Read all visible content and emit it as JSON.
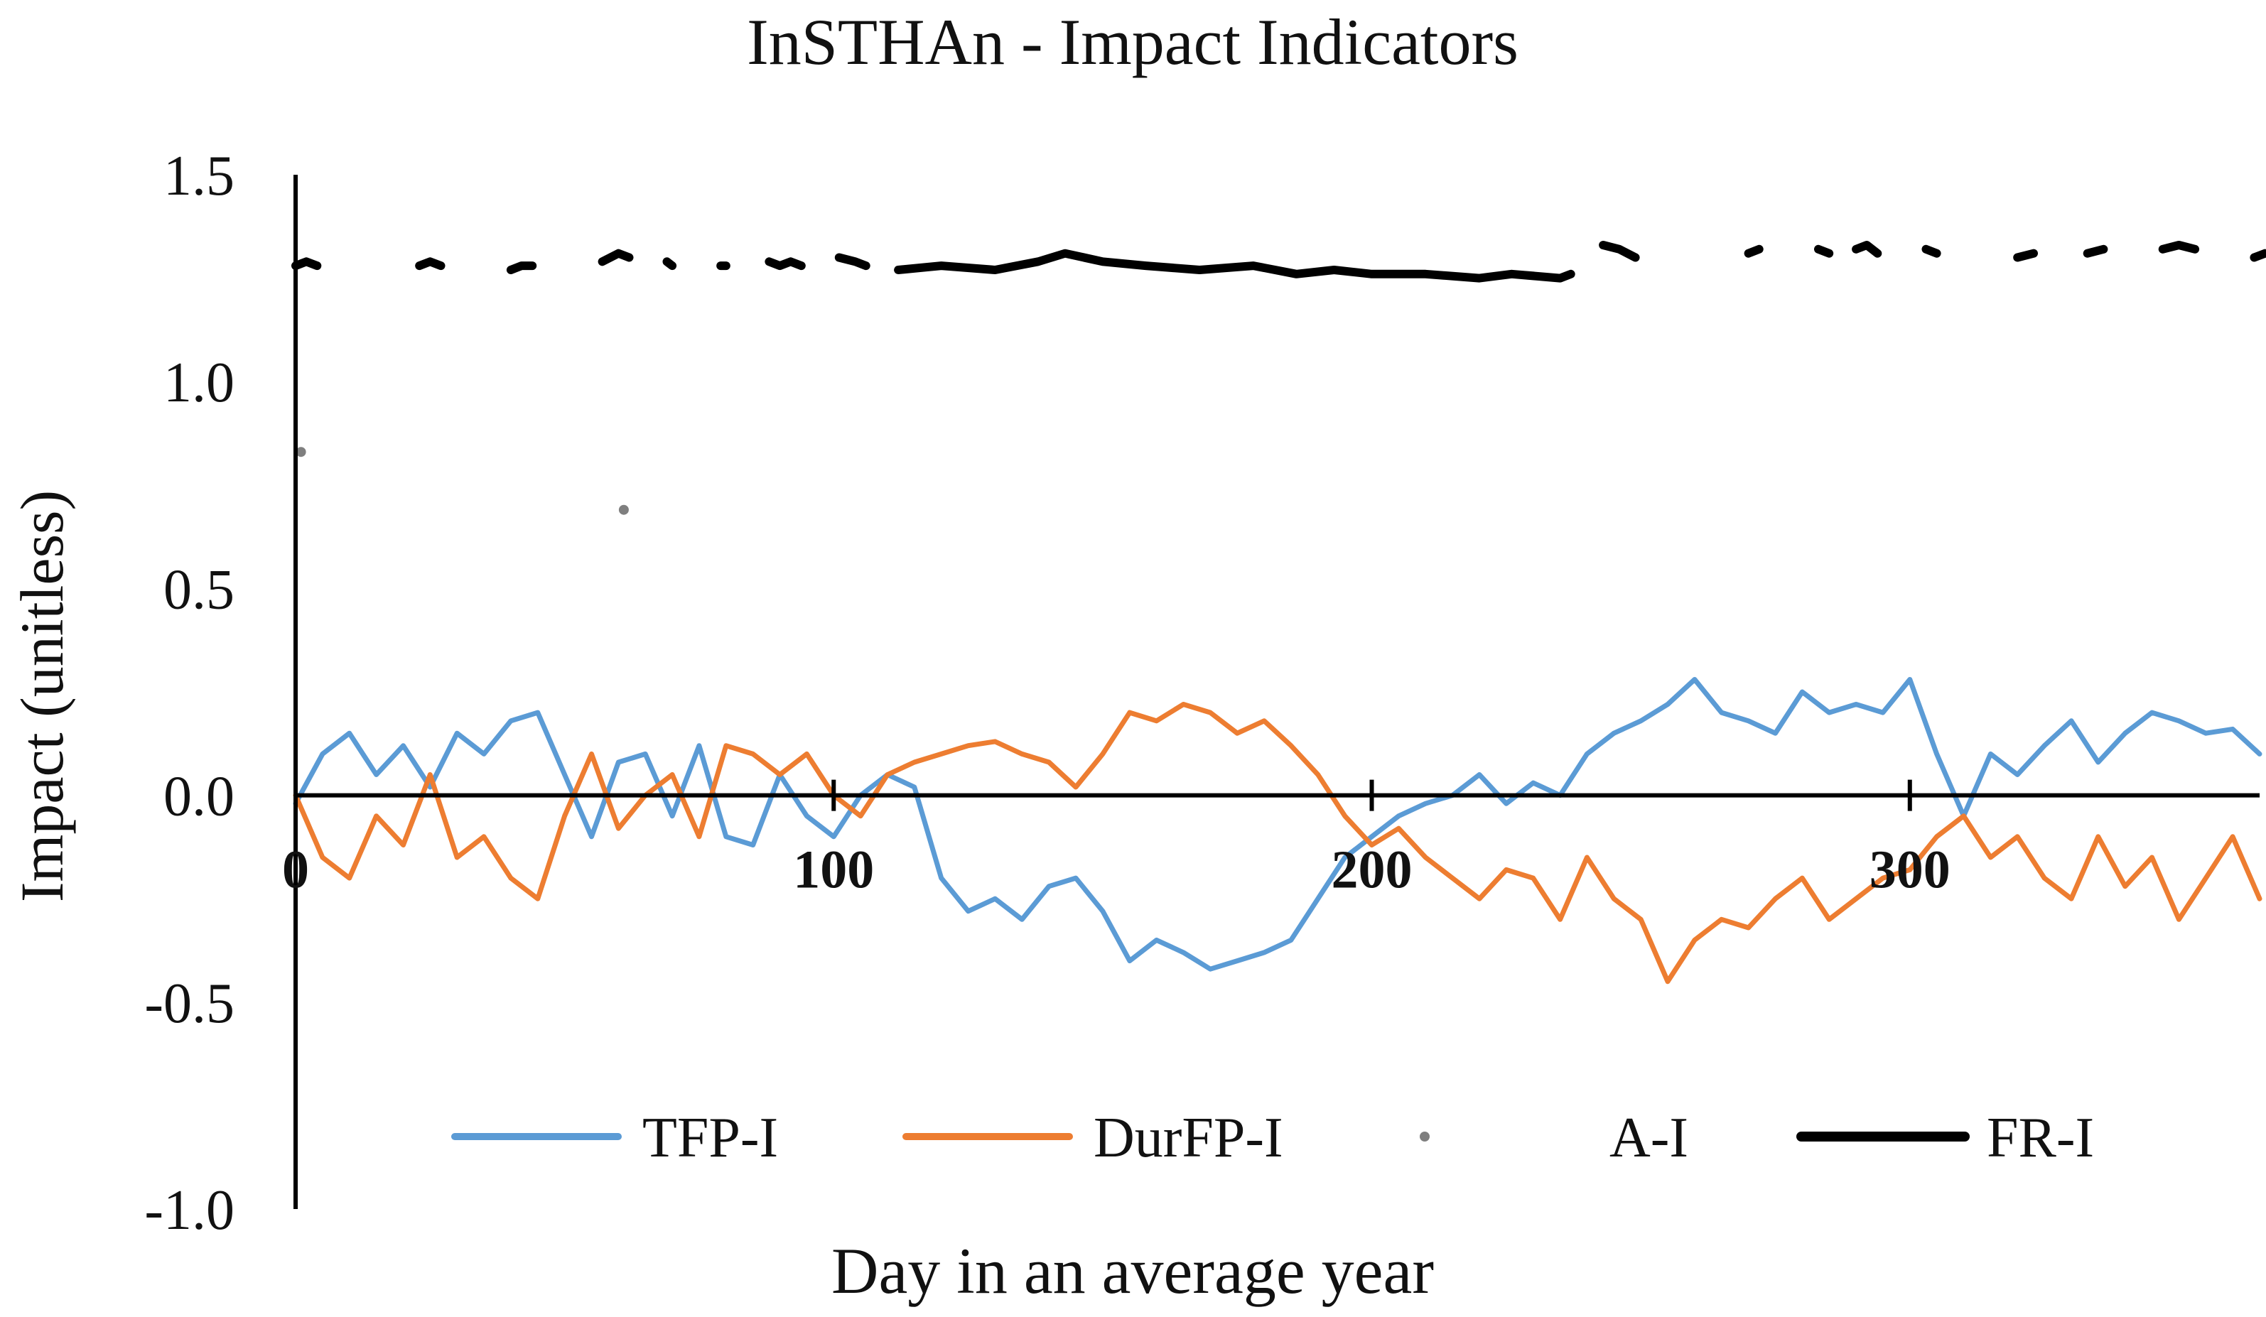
{
  "chart_data": {
    "type": "line",
    "title": "InSTHAn - Impact Indicators",
    "xlabel": "Day in an average year",
    "ylabel": "Impact (unitless)",
    "xlim": [
      0,
      365
    ],
    "ylim": [
      -1.0,
      1.5
    ],
    "x_ticks": [
      {
        "value": 0,
        "label": "0"
      },
      {
        "value": 100,
        "label": "100"
      },
      {
        "value": 200,
        "label": "200"
      },
      {
        "value": 300,
        "label": "300"
      }
    ],
    "y_ticks": [
      {
        "value": 1.5,
        "label": "1.5"
      },
      {
        "value": 1.0,
        "label": "1.0"
      },
      {
        "value": 0.5,
        "label": "0.5"
      },
      {
        "value": 0.0,
        "label": "0.0"
      },
      {
        "value": -0.5,
        "label": "-0.5"
      },
      {
        "value": -1.0,
        "label": "-1.0"
      }
    ],
    "legend_position": "bottom",
    "series": [
      {
        "name": "TFP-I",
        "style": "line",
        "color": "#5b9bd5",
        "x": [
          0,
          5,
          10,
          15,
          20,
          25,
          30,
          35,
          40,
          45,
          50,
          55,
          60,
          65,
          70,
          75,
          80,
          85,
          90,
          95,
          100,
          105,
          110,
          115,
          120,
          125,
          130,
          135,
          140,
          145,
          150,
          155,
          160,
          165,
          170,
          175,
          180,
          185,
          190,
          195,
          200,
          205,
          210,
          215,
          220,
          225,
          230,
          235,
          240,
          245,
          250,
          255,
          260,
          265,
          270,
          275,
          280,
          285,
          290,
          295,
          300,
          305,
          310,
          315,
          320,
          325,
          330,
          335,
          340,
          345,
          350,
          355,
          360,
          365
        ],
        "values": [
          -0.02,
          0.1,
          0.15,
          0.05,
          0.12,
          0.02,
          0.15,
          0.1,
          0.18,
          0.2,
          0.05,
          -0.1,
          0.08,
          0.1,
          -0.05,
          0.12,
          -0.1,
          -0.12,
          0.05,
          -0.05,
          -0.1,
          0.0,
          0.05,
          0.02,
          -0.2,
          -0.28,
          -0.25,
          -0.3,
          -0.22,
          -0.2,
          -0.28,
          -0.4,
          -0.35,
          -0.38,
          -0.42,
          -0.4,
          -0.38,
          -0.35,
          -0.25,
          -0.15,
          -0.1,
          -0.05,
          -0.02,
          0.0,
          0.05,
          -0.02,
          0.03,
          0.0,
          0.1,
          0.15,
          0.18,
          0.22,
          0.28,
          0.2,
          0.18,
          0.15,
          0.25,
          0.2,
          0.22,
          0.2,
          0.28,
          0.1,
          -0.05,
          0.1,
          0.05,
          0.12,
          0.18,
          0.08,
          0.15,
          0.2,
          0.18,
          0.15,
          0.16,
          0.1
        ]
      },
      {
        "name": "DurFP-I",
        "style": "line",
        "color": "#ed7d31",
        "x": [
          0,
          5,
          10,
          15,
          20,
          25,
          30,
          35,
          40,
          45,
          50,
          55,
          60,
          65,
          70,
          75,
          80,
          85,
          90,
          95,
          100,
          105,
          110,
          115,
          120,
          125,
          130,
          135,
          140,
          145,
          150,
          155,
          160,
          165,
          170,
          175,
          180,
          185,
          190,
          195,
          200,
          205,
          210,
          215,
          220,
          225,
          230,
          235,
          240,
          245,
          250,
          255,
          260,
          265,
          270,
          275,
          280,
          285,
          290,
          295,
          300,
          305,
          310,
          315,
          320,
          325,
          330,
          335,
          340,
          345,
          350,
          355,
          360,
          365
        ],
        "values": [
          0.0,
          -0.15,
          -0.2,
          -0.05,
          -0.12,
          0.05,
          -0.15,
          -0.1,
          -0.2,
          -0.25,
          -0.05,
          0.1,
          -0.08,
          0.0,
          0.05,
          -0.1,
          0.12,
          0.1,
          0.05,
          0.1,
          0.0,
          -0.05,
          0.05,
          0.08,
          0.1,
          0.12,
          0.13,
          0.1,
          0.08,
          0.02,
          0.1,
          0.2,
          0.18,
          0.22,
          0.2,
          0.15,
          0.18,
          0.12,
          0.05,
          -0.05,
          -0.12,
          -0.08,
          -0.15,
          -0.2,
          -0.25,
          -0.18,
          -0.2,
          -0.3,
          -0.15,
          -0.25,
          -0.3,
          -0.45,
          -0.35,
          -0.3,
          -0.32,
          -0.25,
          -0.2,
          -0.3,
          -0.25,
          -0.2,
          -0.18,
          -0.1,
          -0.05,
          -0.15,
          -0.1,
          -0.2,
          -0.25,
          -0.1,
          -0.22,
          -0.15,
          -0.3,
          -0.2,
          -0.1,
          -0.25
        ]
      },
      {
        "name": "A-I",
        "style": "point",
        "color": "#7f7f7f",
        "x": [
          1,
          61
        ],
        "values": [
          0.83,
          0.69
        ]
      },
      {
        "name": "FR-I",
        "style": "broken-line",
        "color": "#000000",
        "segments": [
          {
            "x": [
              0,
              2,
              4
            ],
            "values": [
              1.28,
              1.29,
              1.28
            ]
          },
          {
            "x": [
              23,
              25,
              27
            ],
            "values": [
              1.28,
              1.29,
              1.28
            ]
          },
          {
            "x": [
              40,
              42,
              44
            ],
            "values": [
              1.27,
              1.28,
              1.28
            ]
          },
          {
            "x": [
              57,
              60,
              62
            ],
            "values": [
              1.29,
              1.31,
              1.3
            ]
          },
          {
            "x": [
              69,
              70
            ],
            "values": [
              1.29,
              1.28
            ]
          },
          {
            "x": [
              79,
              80
            ],
            "values": [
              1.28,
              1.28
            ]
          },
          {
            "x": [
              88,
              90,
              92,
              94
            ],
            "values": [
              1.29,
              1.28,
              1.29,
              1.28
            ]
          },
          {
            "x": [
              101,
              104,
              106
            ],
            "values": [
              1.3,
              1.29,
              1.28
            ]
          },
          {
            "x": [
              112,
              120,
              130,
              138,
              143,
              150,
              158,
              168,
              178,
              186,
              193,
              200,
              210,
              220,
              226,
              235,
              237
            ],
            "values": [
              1.27,
              1.28,
              1.27,
              1.29,
              1.31,
              1.29,
              1.28,
              1.27,
              1.28,
              1.26,
              1.27,
              1.26,
              1.26,
              1.25,
              1.26,
              1.25,
              1.26
            ]
          },
          {
            "x": [
              243,
              246,
              249
            ],
            "values": [
              1.33,
              1.32,
              1.3
            ]
          },
          {
            "x": [
              270,
              272
            ],
            "values": [
              1.31,
              1.32
            ]
          },
          {
            "x": [
              283,
              285
            ],
            "values": [
              1.32,
              1.31
            ]
          },
          {
            "x": [
              290,
              292,
              294
            ],
            "values": [
              1.32,
              1.33,
              1.31
            ]
          },
          {
            "x": [
              303,
              305
            ],
            "values": [
              1.32,
              1.31
            ]
          },
          {
            "x": [
              320,
              323
            ],
            "values": [
              1.3,
              1.31
            ]
          },
          {
            "x": [
              333,
              336
            ],
            "values": [
              1.31,
              1.32
            ]
          },
          {
            "x": [
              347,
              350,
              353
            ],
            "values": [
              1.32,
              1.33,
              1.32
            ]
          },
          {
            "x": [
              364,
              366
            ],
            "values": [
              1.3,
              1.31
            ]
          }
        ]
      }
    ]
  }
}
